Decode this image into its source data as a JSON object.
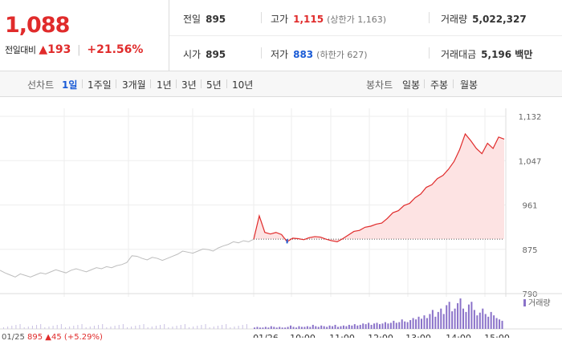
{
  "header": {
    "price": "1,088",
    "change_label": "전일대비",
    "change_arrow": "▲",
    "change_value": "193",
    "change_pct": "+21.56%"
  },
  "stats": {
    "prev_close": {
      "label": "전일",
      "value": "895"
    },
    "high": {
      "label": "고가",
      "value": "1,115",
      "sub": "(상한가 1,163)"
    },
    "volume": {
      "label": "거래량",
      "value": "5,022,327"
    },
    "open": {
      "label": "시가",
      "value": "895"
    },
    "low": {
      "label": "저가",
      "value": "883",
      "sub": "(하한가 627)"
    },
    "trade_value": {
      "label": "거래대금",
      "value": "5,196 백만"
    }
  },
  "toolbar": {
    "line_chart_label": "선차트",
    "line_periods": [
      "1일",
      "1주일",
      "3개월",
      "1년",
      "3년",
      "5년",
      "10년"
    ],
    "active_period": "1일",
    "candle_chart_label": "봉차트",
    "candle_periods": [
      "일봉",
      "주봉",
      "월봉"
    ]
  },
  "bottom_info": {
    "date": "01/25",
    "price": "895",
    "arrow": "▲",
    "change": "45",
    "pct": "(+5.29%)"
  },
  "colors": {
    "up": "#e02b2b",
    "down": "#1a5bd6",
    "prev_day_line": "#bdbdbd",
    "fill": "#fde3e3",
    "volume_bar": "#8a72c9"
  },
  "chart_data": {
    "type": "line",
    "y_ticks": [
      "1,132",
      "1,047",
      "961",
      "875",
      "790"
    ],
    "ylim": [
      790,
      1132
    ],
    "x_labels": [
      "01/26",
      "10:00",
      "11:00",
      "12:00",
      "13:00",
      "14:00",
      "15:00"
    ],
    "reference_price": 895,
    "volume_legend": "거래량",
    "prev_day": {
      "date": "01/25",
      "values": [
        835,
        830,
        826,
        822,
        828,
        825,
        822,
        826,
        830,
        828,
        832,
        836,
        833,
        830,
        835,
        838,
        835,
        832,
        836,
        840,
        838,
        842,
        840,
        844,
        846,
        850,
        863,
        862,
        858,
        855,
        860,
        858,
        854,
        858,
        862,
        866,
        872,
        870,
        868,
        872,
        876,
        875,
        872,
        878,
        882,
        885,
        890,
        888,
        892,
        890,
        895
      ]
    },
    "intraday": {
      "series_name": "1일",
      "values": [
        895,
        940,
        908,
        905,
        908,
        904,
        890,
        897,
        896,
        894,
        898,
        900,
        899,
        895,
        892,
        890,
        896,
        903,
        910,
        912,
        918,
        920,
        924,
        926,
        935,
        946,
        950,
        960,
        964,
        975,
        982,
        995,
        1000,
        1012,
        1018,
        1030,
        1045,
        1068,
        1098,
        1085,
        1070,
        1060,
        1080,
        1070,
        1092,
        1088
      ]
    },
    "volume": [
      2,
      3,
      2,
      2,
      3,
      2,
      4,
      3,
      2,
      3,
      2,
      2,
      3,
      5,
      3,
      2,
      4,
      3,
      3,
      4,
      3,
      6,
      4,
      3,
      5,
      4,
      3,
      5,
      4,
      6,
      3,
      4,
      5,
      4,
      6,
      5,
      7,
      5,
      6,
      8,
      7,
      9,
      6,
      8,
      9,
      7,
      8,
      10,
      8,
      9,
      12,
      9,
      10,
      14,
      11,
      10,
      13,
      16,
      14,
      18,
      15,
      20,
      16,
      22,
      28,
      18,
      25,
      30,
      22,
      35,
      40,
      26,
      30,
      38,
      45,
      30,
      25,
      36,
      40,
      28,
      20,
      24,
      30,
      22,
      18,
      25,
      20,
      16,
      14,
      12
    ]
  }
}
